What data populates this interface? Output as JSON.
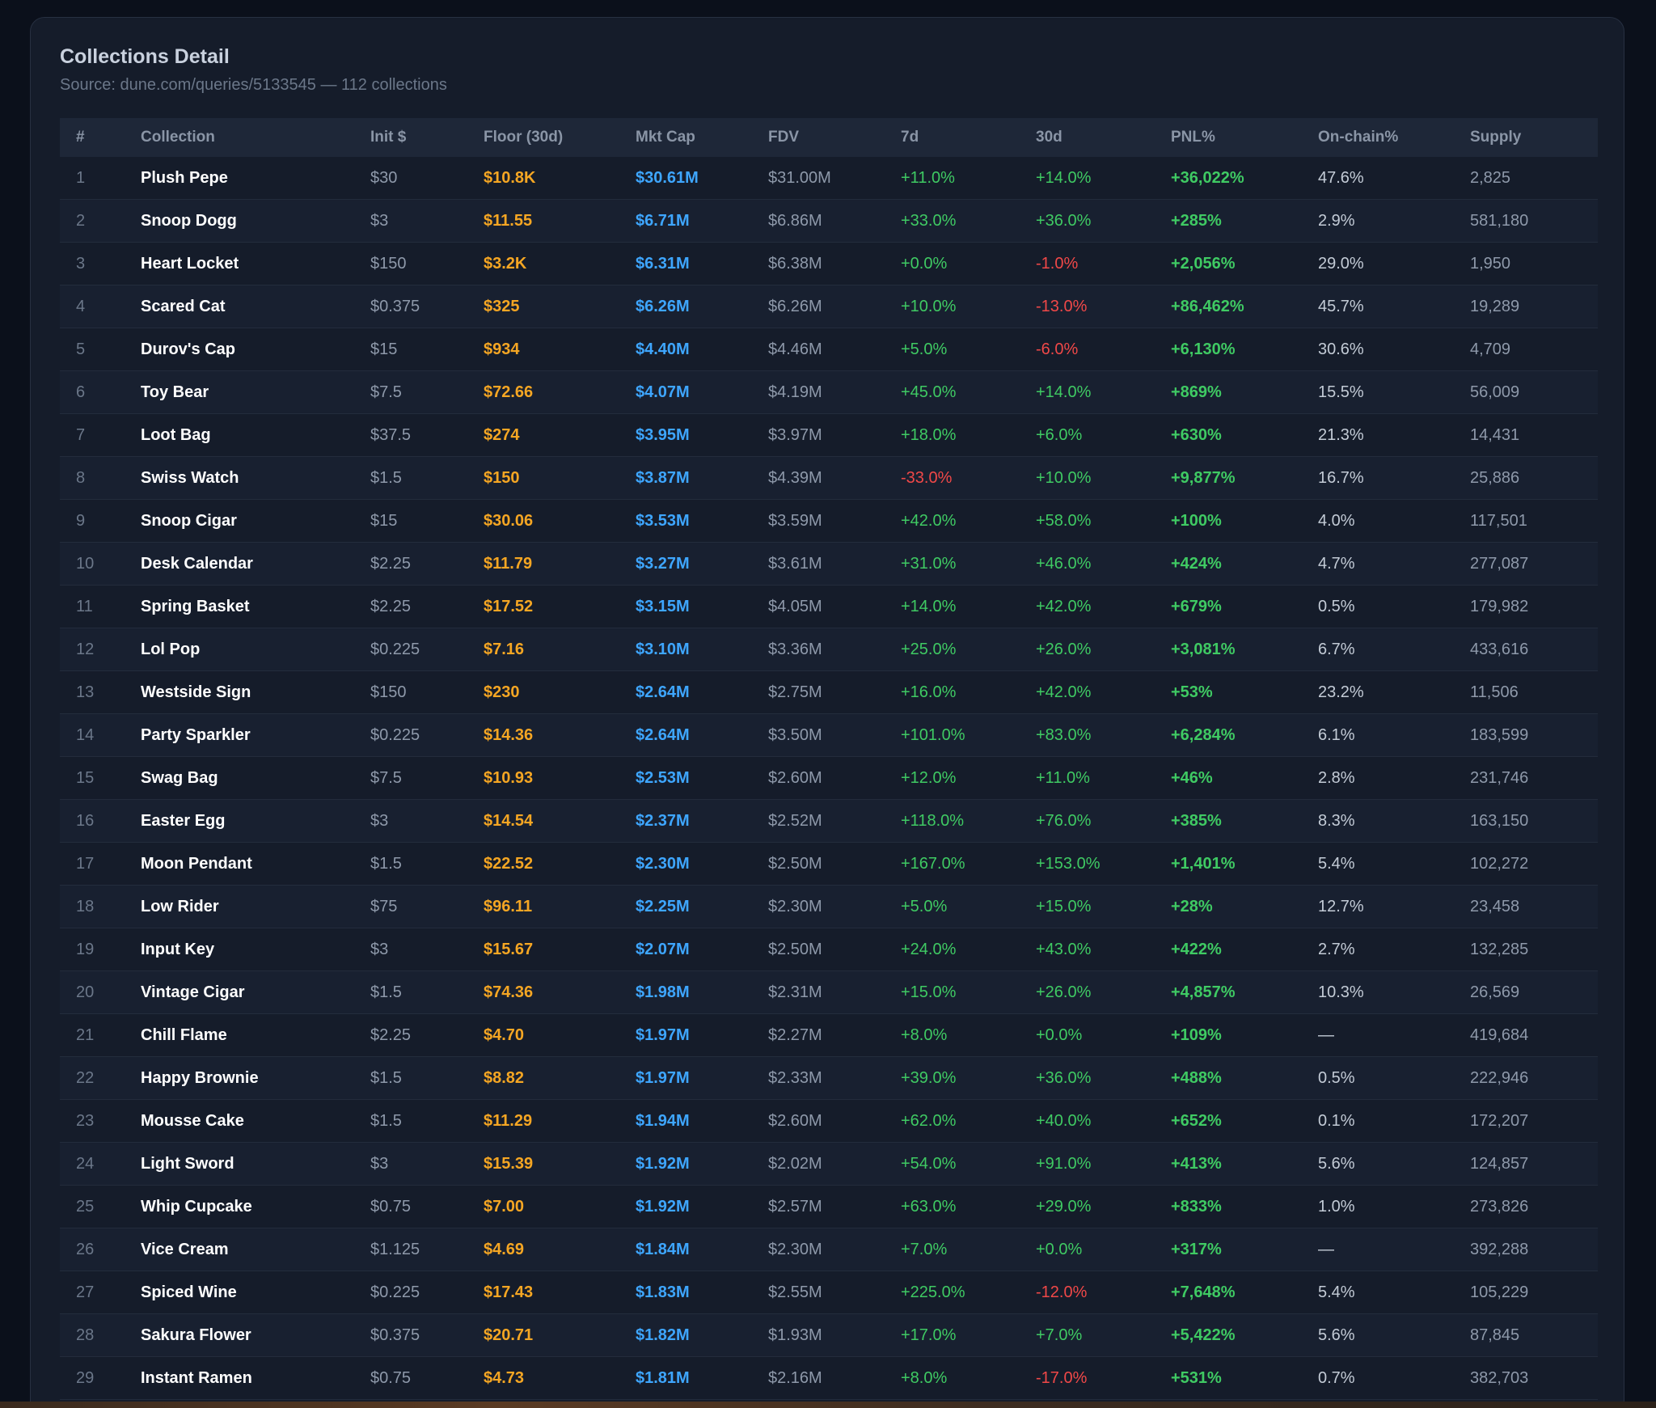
{
  "panel": {
    "title": "Collections Detail",
    "subtitle": "Source: dune.com/queries/5133545 — 112 collections"
  },
  "table": {
    "columns": [
      "#",
      "Collection",
      "Init $",
      "Floor (30d)",
      "Mkt Cap",
      "FDV",
      "7d",
      "30d",
      "PNL%",
      "On-chain%",
      "Supply"
    ],
    "rows": [
      [
        "1",
        "Plush Pepe",
        "$30",
        "$10.8K",
        "$30.61M",
        "$31.00M",
        "+11.0%",
        "+14.0%",
        "+36,022%",
        "47.6%",
        "2,825"
      ],
      [
        "2",
        "Snoop Dogg",
        "$3",
        "$11.55",
        "$6.71M",
        "$6.86M",
        "+33.0%",
        "+36.0%",
        "+285%",
        "2.9%",
        "581,180"
      ],
      [
        "3",
        "Heart Locket",
        "$150",
        "$3.2K",
        "$6.31M",
        "$6.38M",
        "+0.0%",
        "-1.0%",
        "+2,056%",
        "29.0%",
        "1,950"
      ],
      [
        "4",
        "Scared Cat",
        "$0.375",
        "$325",
        "$6.26M",
        "$6.26M",
        "+10.0%",
        "-13.0%",
        "+86,462%",
        "45.7%",
        "19,289"
      ],
      [
        "5",
        "Durov's Cap",
        "$15",
        "$934",
        "$4.40M",
        "$4.46M",
        "+5.0%",
        "-6.0%",
        "+6,130%",
        "30.6%",
        "4,709"
      ],
      [
        "6",
        "Toy Bear",
        "$7.5",
        "$72.66",
        "$4.07M",
        "$4.19M",
        "+45.0%",
        "+14.0%",
        "+869%",
        "15.5%",
        "56,009"
      ],
      [
        "7",
        "Loot Bag",
        "$37.5",
        "$274",
        "$3.95M",
        "$3.97M",
        "+18.0%",
        "+6.0%",
        "+630%",
        "21.3%",
        "14,431"
      ],
      [
        "8",
        "Swiss Watch",
        "$1.5",
        "$150",
        "$3.87M",
        "$4.39M",
        "-33.0%",
        "+10.0%",
        "+9,877%",
        "16.7%",
        "25,886"
      ],
      [
        "9",
        "Snoop Cigar",
        "$15",
        "$30.06",
        "$3.53M",
        "$3.59M",
        "+42.0%",
        "+58.0%",
        "+100%",
        "4.0%",
        "117,501"
      ],
      [
        "10",
        "Desk Calendar",
        "$2.25",
        "$11.79",
        "$3.27M",
        "$3.61M",
        "+31.0%",
        "+46.0%",
        "+424%",
        "4.7%",
        "277,087"
      ],
      [
        "11",
        "Spring Basket",
        "$2.25",
        "$17.52",
        "$3.15M",
        "$4.05M",
        "+14.0%",
        "+42.0%",
        "+679%",
        "0.5%",
        "179,982"
      ],
      [
        "12",
        "Lol Pop",
        "$0.225",
        "$7.16",
        "$3.10M",
        "$3.36M",
        "+25.0%",
        "+26.0%",
        "+3,081%",
        "6.7%",
        "433,616"
      ],
      [
        "13",
        "Westside Sign",
        "$150",
        "$230",
        "$2.64M",
        "$2.75M",
        "+16.0%",
        "+42.0%",
        "+53%",
        "23.2%",
        "11,506"
      ],
      [
        "14",
        "Party Sparkler",
        "$0.225",
        "$14.36",
        "$2.64M",
        "$3.50M",
        "+101.0%",
        "+83.0%",
        "+6,284%",
        "6.1%",
        "183,599"
      ],
      [
        "15",
        "Swag Bag",
        "$7.5",
        "$10.93",
        "$2.53M",
        "$2.60M",
        "+12.0%",
        "+11.0%",
        "+46%",
        "2.8%",
        "231,746"
      ],
      [
        "16",
        "Easter Egg",
        "$3",
        "$14.54",
        "$2.37M",
        "$2.52M",
        "+118.0%",
        "+76.0%",
        "+385%",
        "8.3%",
        "163,150"
      ],
      [
        "17",
        "Moon Pendant",
        "$1.5",
        "$22.52",
        "$2.30M",
        "$2.50M",
        "+167.0%",
        "+153.0%",
        "+1,401%",
        "5.4%",
        "102,272"
      ],
      [
        "18",
        "Low Rider",
        "$75",
        "$96.11",
        "$2.25M",
        "$2.30M",
        "+5.0%",
        "+15.0%",
        "+28%",
        "12.7%",
        "23,458"
      ],
      [
        "19",
        "Input Key",
        "$3",
        "$15.67",
        "$2.07M",
        "$2.50M",
        "+24.0%",
        "+43.0%",
        "+422%",
        "2.7%",
        "132,285"
      ],
      [
        "20",
        "Vintage Cigar",
        "$1.5",
        "$74.36",
        "$1.98M",
        "$2.31M",
        "+15.0%",
        "+26.0%",
        "+4,857%",
        "10.3%",
        "26,569"
      ],
      [
        "21",
        "Chill Flame",
        "$2.25",
        "$4.70",
        "$1.97M",
        "$2.27M",
        "+8.0%",
        "+0.0%",
        "+109%",
        "—",
        "419,684"
      ],
      [
        "22",
        "Happy Brownie",
        "$1.5",
        "$8.82",
        "$1.97M",
        "$2.33M",
        "+39.0%",
        "+36.0%",
        "+488%",
        "0.5%",
        "222,946"
      ],
      [
        "23",
        "Mousse Cake",
        "$1.5",
        "$11.29",
        "$1.94M",
        "$2.60M",
        "+62.0%",
        "+40.0%",
        "+652%",
        "0.1%",
        "172,207"
      ],
      [
        "24",
        "Light Sword",
        "$3",
        "$15.39",
        "$1.92M",
        "$2.02M",
        "+54.0%",
        "+91.0%",
        "+413%",
        "5.6%",
        "124,857"
      ],
      [
        "25",
        "Whip Cupcake",
        "$0.75",
        "$7.00",
        "$1.92M",
        "$2.57M",
        "+63.0%",
        "+29.0%",
        "+833%",
        "1.0%",
        "273,826"
      ],
      [
        "26",
        "Vice Cream",
        "$1.125",
        "$4.69",
        "$1.84M",
        "$2.30M",
        "+7.0%",
        "+0.0%",
        "+317%",
        "—",
        "392,288"
      ],
      [
        "27",
        "Spiced Wine",
        "$0.225",
        "$17.43",
        "$1.83M",
        "$2.55M",
        "+225.0%",
        "-12.0%",
        "+7,648%",
        "5.4%",
        "105,229"
      ],
      [
        "28",
        "Sakura Flower",
        "$0.375",
        "$20.71",
        "$1.82M",
        "$1.93M",
        "+17.0%",
        "+7.0%",
        "+5,422%",
        "5.6%",
        "87,845"
      ],
      [
        "29",
        "Instant Ramen",
        "$0.75",
        "$4.73",
        "$1.81M",
        "$2.16M",
        "+8.0%",
        "-17.0%",
        "+531%",
        "0.7%",
        "382,703"
      ]
    ]
  },
  "colors": {
    "floor": "#f5a623",
    "mkt_cap": "#3ea6ff",
    "positive": "#3fca63",
    "negative": "#f04848"
  }
}
